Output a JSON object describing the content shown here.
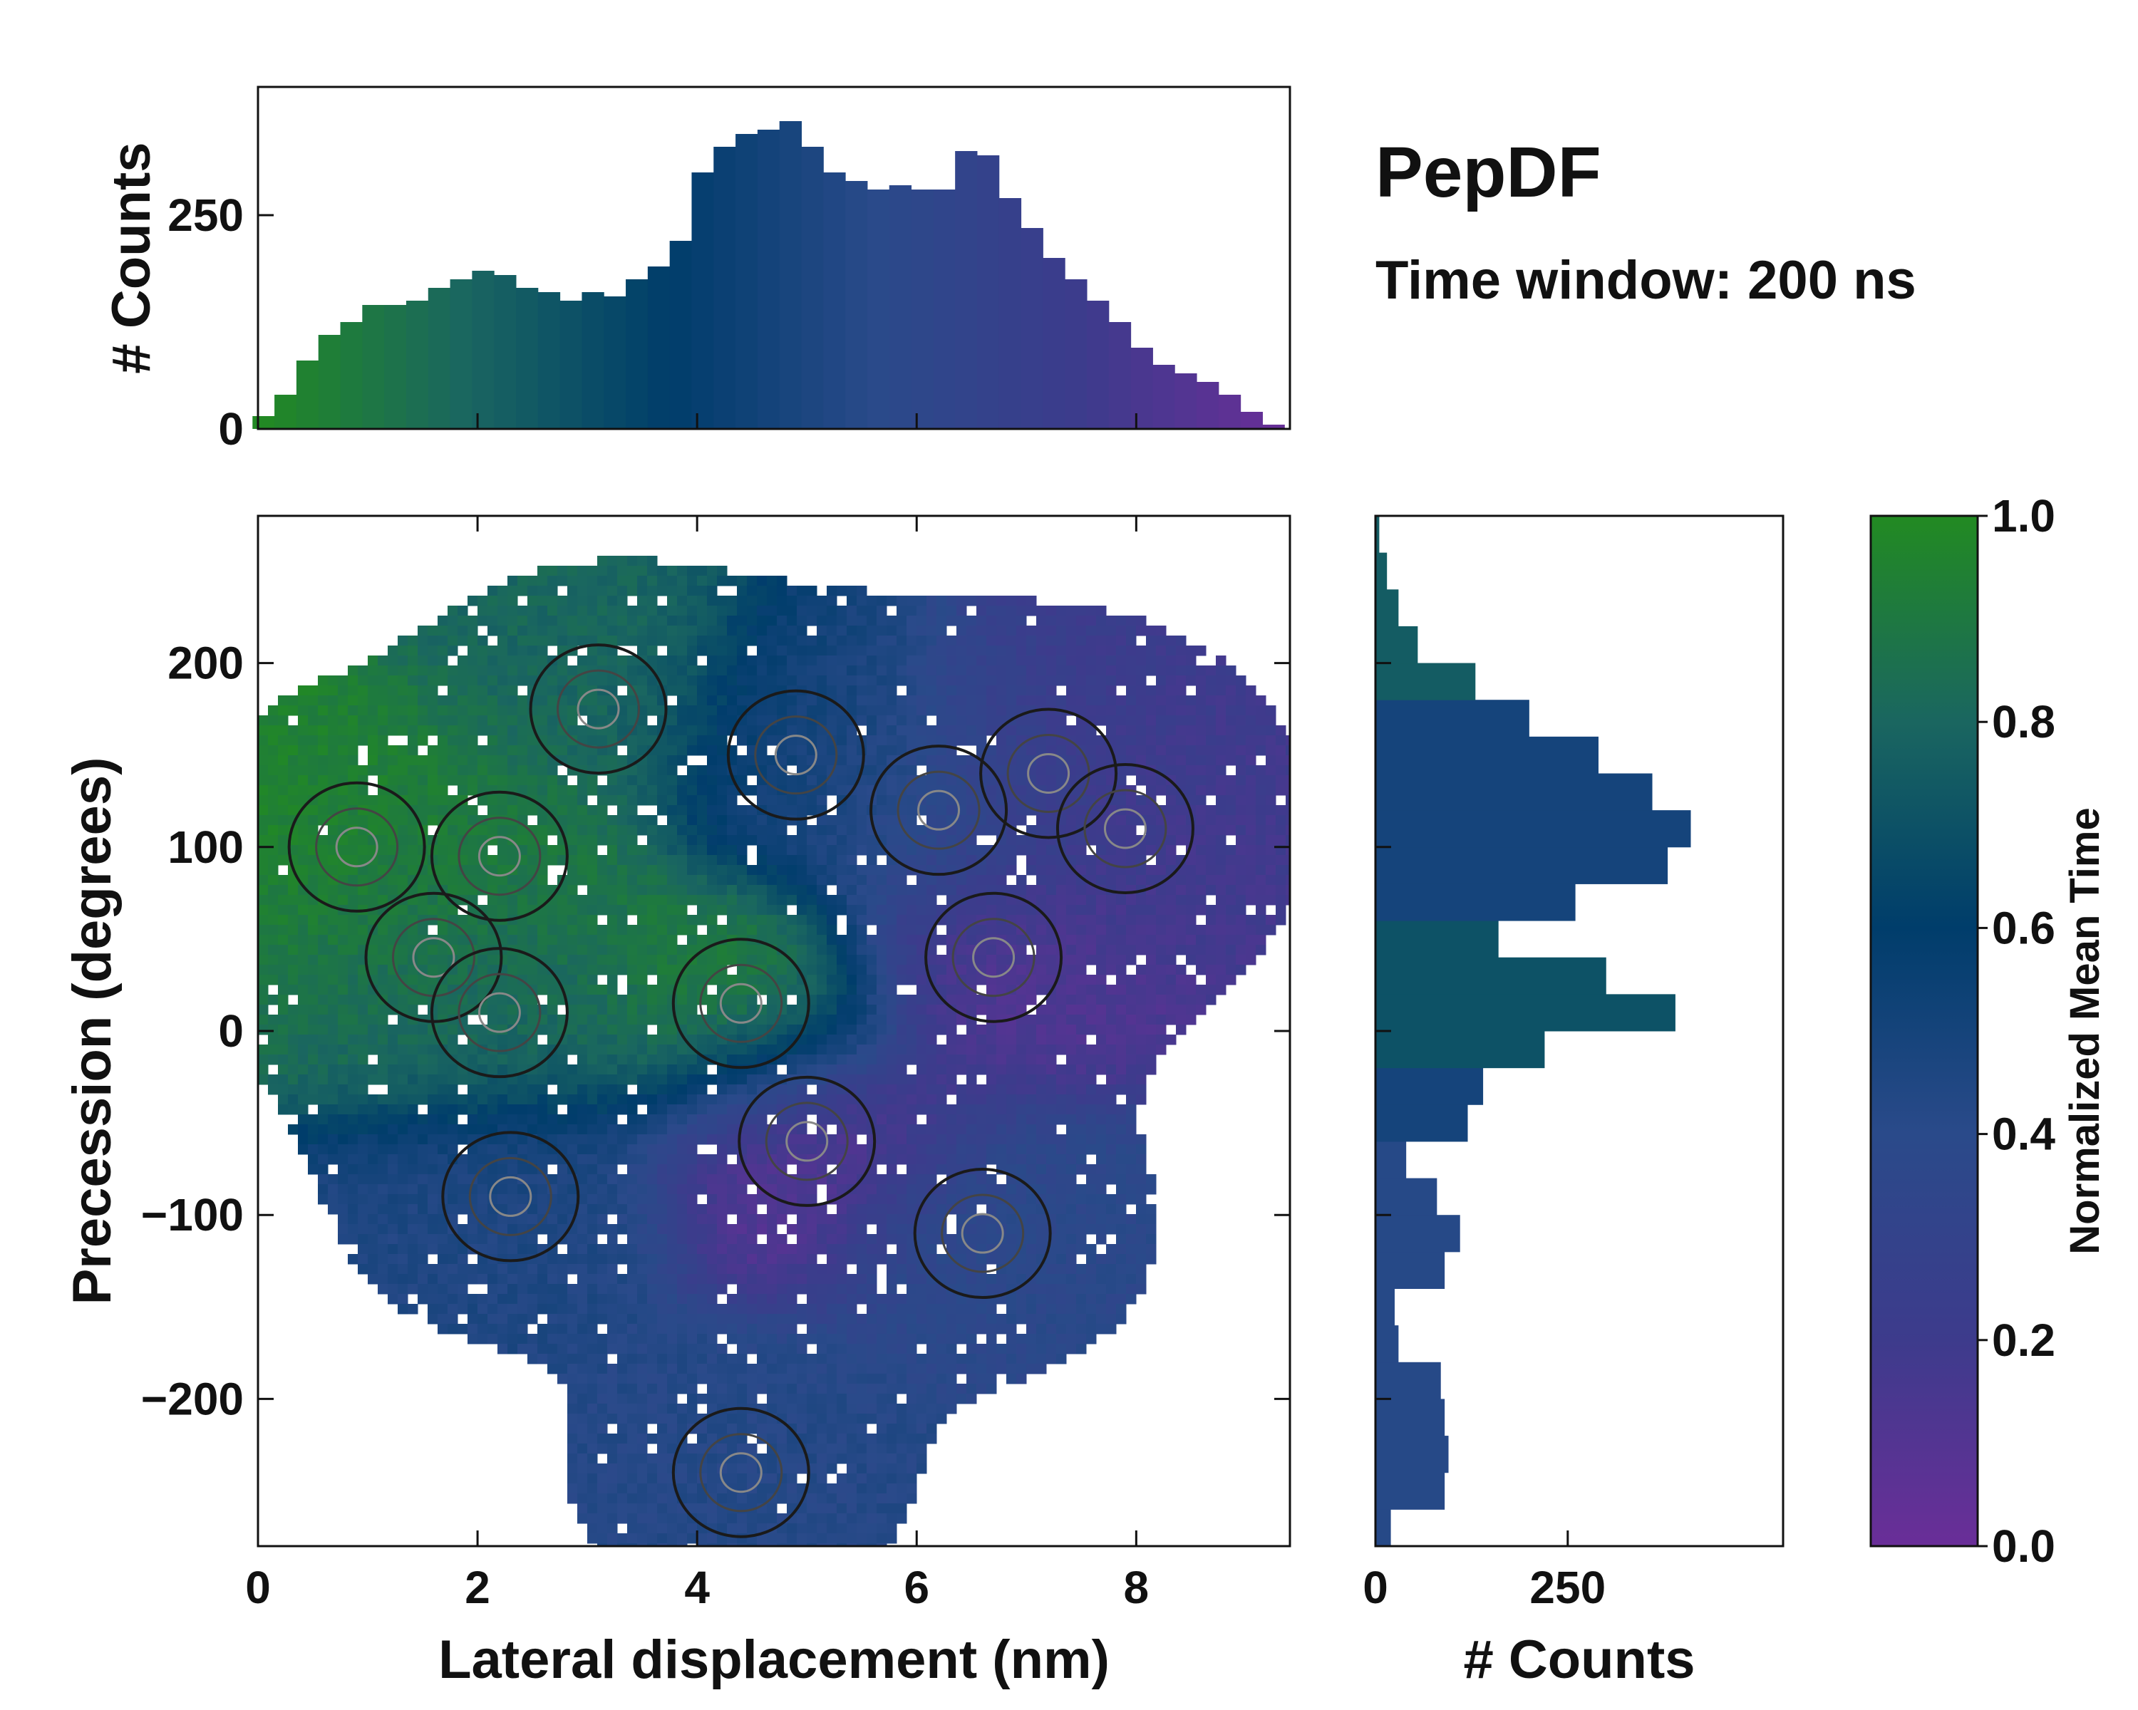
{
  "chart_data": {
    "type": "heatmap",
    "title": "PepDF",
    "subtitle": "Time window: 200 ns",
    "main": {
      "xlabel": "Lateral displacement (nm)",
      "ylabel": "Precession (degrees)",
      "xlim": [
        0,
        9.4
      ],
      "ylim": [
        -280,
        280
      ],
      "xticks": [
        0,
        2,
        4,
        6,
        8
      ],
      "xtick_labels": [
        "0",
        "2",
        "4",
        "6",
        "8"
      ],
      "yticks": [
        -200,
        -100,
        0,
        100,
        200
      ],
      "ytick_labels": [
        "−200",
        "−100",
        "0",
        "100",
        "200"
      ],
      "clusters": [
        {
          "x": 0.9,
          "y": 100,
          "t": 0.95
        },
        {
          "x": 2.2,
          "y": 95,
          "t": 0.9
        },
        {
          "x": 1.6,
          "y": 40,
          "t": 0.85
        },
        {
          "x": 2.2,
          "y": 10,
          "t": 0.8
        },
        {
          "x": 4.4,
          "y": 15,
          "t": 0.92
        },
        {
          "x": 3.1,
          "y": 175,
          "t": 0.8
        },
        {
          "x": 4.9,
          "y": 150,
          "t": 0.5
        },
        {
          "x": 6.2,
          "y": 120,
          "t": 0.42
        },
        {
          "x": 7.2,
          "y": 140,
          "t": 0.22
        },
        {
          "x": 7.9,
          "y": 110,
          "t": 0.18
        },
        {
          "x": 6.7,
          "y": 40,
          "t": 0.12
        },
        {
          "x": 5.0,
          "y": -60,
          "t": 0.08
        },
        {
          "x": 2.3,
          "y": -90,
          "t": 0.45
        },
        {
          "x": 6.6,
          "y": -110,
          "t": 0.38
        },
        {
          "x": 4.4,
          "y": -240,
          "t": 0.42
        }
      ]
    },
    "top_histogram": {
      "ylabel": "# Counts",
      "ylim": [
        0,
        400
      ],
      "yticks": [
        0,
        250
      ],
      "ytick_labels": [
        "0",
        "250"
      ],
      "bins_x": [
        0.05,
        0.25,
        0.45,
        0.65,
        0.85,
        1.05,
        1.25,
        1.45,
        1.65,
        1.85,
        2.05,
        2.25,
        2.45,
        2.65,
        2.85,
        3.05,
        3.25,
        3.45,
        3.65,
        3.85,
        4.05,
        4.25,
        4.45,
        4.65,
        4.85,
        5.05,
        5.25,
        5.45,
        5.65,
        5.85,
        6.05,
        6.25,
        6.45,
        6.65,
        6.85,
        7.05,
        7.25,
        7.45,
        7.65,
        7.85,
        8.05,
        8.25,
        8.45,
        8.65,
        8.85,
        9.05,
        9.25
      ],
      "counts": [
        15,
        40,
        80,
        110,
        125,
        145,
        145,
        150,
        165,
        175,
        185,
        180,
        165,
        160,
        150,
        160,
        155,
        175,
        190,
        220,
        300,
        330,
        345,
        350,
        360,
        330,
        300,
        290,
        280,
        285,
        280,
        280,
        325,
        320,
        270,
        235,
        200,
        175,
        150,
        125,
        95,
        75,
        65,
        55,
        40,
        20,
        5
      ]
    },
    "right_histogram": {
      "xlabel": "# Counts",
      "xlim": [
        0,
        530
      ],
      "xticks": [
        0,
        250
      ],
      "xtick_labels": [
        "0",
        "250"
      ],
      "bins_y": [
        -270,
        -250,
        -230,
        -210,
        -190,
        -170,
        -150,
        -130,
        -110,
        -90,
        -70,
        -50,
        -30,
        -10,
        10,
        30,
        50,
        70,
        90,
        110,
        130,
        150,
        170,
        190,
        210,
        230,
        250,
        270
      ],
      "counts": [
        20,
        90,
        95,
        90,
        85,
        30,
        25,
        90,
        110,
        80,
        40,
        120,
        140,
        220,
        390,
        300,
        160,
        260,
        380,
        410,
        360,
        290,
        200,
        130,
        55,
        30,
        15,
        5
      ]
    },
    "colorbar": {
      "label": "Normalized Mean Time",
      "range": [
        0,
        1
      ],
      "ticks": [
        0,
        0.2,
        0.4,
        0.6,
        0.8,
        1.0
      ],
      "tick_labels": [
        "0.0",
        "0.2",
        "0.4",
        "0.6",
        "0.8",
        "1.0"
      ],
      "stops": [
        "#6a2e98",
        "#3d3b8c",
        "#2a4a8a",
        "#003d6b",
        "#1a6660",
        "#228a22"
      ]
    }
  }
}
